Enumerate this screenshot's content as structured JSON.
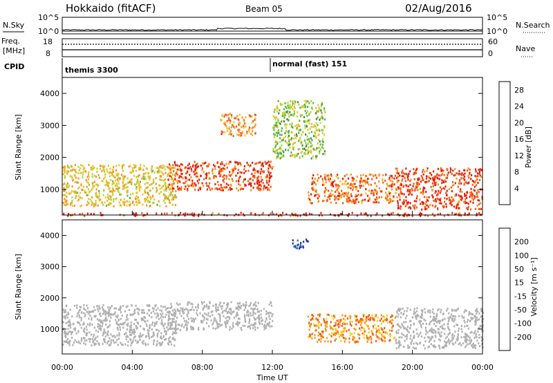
{
  "header": {
    "title": "Hokkaido (fitACF)",
    "beam": "Beam 05",
    "date": "02/Aug/2016"
  },
  "nsky_panel": {
    "left_label": "N.Sky",
    "left_ticks": [
      "10^5",
      "10^0"
    ],
    "right_label": "N.Search",
    "right_ticks": [
      "10^5",
      "10^0"
    ]
  },
  "freq_panel": {
    "left_label_line1": "Freq.",
    "left_label_line2": "[MHz]",
    "left_ticks": [
      "18",
      "8"
    ],
    "right_label": "Nave",
    "right_ticks": [
      "60",
      "0"
    ]
  },
  "cpid_panel": {
    "label": "CPID",
    "entries": [
      {
        "text": "themis 3300",
        "start_hour": 0
      },
      {
        "text": "normal (fast) 151",
        "start_hour": 12
      }
    ]
  },
  "time_axis": {
    "label": "Time UT",
    "ticks": [
      "00:00",
      "04:00",
      "08:00",
      "12:00",
      "16:00",
      "20:00",
      "00:00"
    ],
    "start_hour": 0,
    "end_hour": 24
  },
  "chart_data": [
    {
      "type": "heatmap",
      "panel": "power",
      "ylabel": "Slant Range [km]",
      "yticks": [
        1000,
        2000,
        3000,
        4000
      ],
      "ylim": [
        200,
        4500
      ],
      "xlim_hours": [
        0,
        24
      ],
      "colorbar": {
        "label": "Power [dB]",
        "ticks": [
          4,
          8,
          12,
          16,
          20,
          24,
          28
        ],
        "range": [
          0,
          30
        ],
        "colors": [
          "#0000ff",
          "#2a4fa8",
          "#3f8a52",
          "#58b843",
          "#b8d23a",
          "#f2c229",
          "#f7931e",
          "#f25a14",
          "#e61b0d"
        ]
      },
      "regions": [
        {
          "name": "band-0-6h",
          "t": [
            0,
            6.5
          ],
          "range_km": [
            500,
            1800
          ],
          "power_db": 18
        },
        {
          "name": "band-6-12h",
          "t": [
            6,
            12
          ],
          "range_km": [
            1000,
            1900
          ],
          "power_db": 26
        },
        {
          "name": "patch-9-11h",
          "t": [
            9,
            11
          ],
          "range_km": [
            2700,
            3400
          ],
          "power_db": 22
        },
        {
          "name": "scatter-12-15h",
          "t": [
            12,
            15
          ],
          "range_km": [
            2000,
            3800
          ],
          "power_db": 14
        },
        {
          "name": "band-14-19h",
          "t": [
            14,
            19
          ],
          "range_km": [
            600,
            1500
          ],
          "power_db": 24
        },
        {
          "name": "band-19-24h",
          "t": [
            19,
            24
          ],
          "range_km": [
            400,
            1700
          ],
          "power_db": 27
        },
        {
          "name": "near-range-line",
          "t": [
            0,
            24
          ],
          "range_km": [
            200,
            300
          ],
          "power_db": 28
        }
      ]
    },
    {
      "type": "heatmap",
      "panel": "velocity",
      "ylabel": "Slant Range [km]",
      "yticks": [
        1000,
        2000,
        3000,
        4000
      ],
      "ylim": [
        200,
        4500
      ],
      "xlim_hours": [
        0,
        24
      ],
      "colorbar": {
        "label": "Velocity [m s⁻¹]",
        "ticks": [
          200,
          100,
          50,
          15,
          -15,
          -50,
          -100,
          -200
        ],
        "range": [
          -250,
          250
        ],
        "colors": [
          "#2233aa",
          "#2e6fc2",
          "#2f8a45",
          "#5cc245",
          "#b0b0b0",
          "#f6d21e",
          "#f59a1b",
          "#f25511",
          "#e21010"
        ]
      },
      "regions": [
        {
          "name": "ground-scatter-0-6h",
          "t": [
            0,
            6.5
          ],
          "range_km": [
            500,
            1800
          ],
          "velocity": 0
        },
        {
          "name": "ground-scatter-6-12h",
          "t": [
            6,
            12
          ],
          "range_km": [
            1000,
            1900
          ],
          "velocity": 0
        },
        {
          "name": "flow-14-19h",
          "t": [
            14,
            19
          ],
          "range_km": [
            600,
            1500
          ],
          "velocity": 120
        },
        {
          "name": "ground-scatter-19-24h",
          "t": [
            19,
            24
          ],
          "range_km": [
            400,
            1700
          ],
          "velocity": 0
        },
        {
          "name": "patch-13-14h",
          "t": [
            13,
            14
          ],
          "range_km": [
            3600,
            3900
          ],
          "velocity": -200
        }
      ]
    }
  ]
}
